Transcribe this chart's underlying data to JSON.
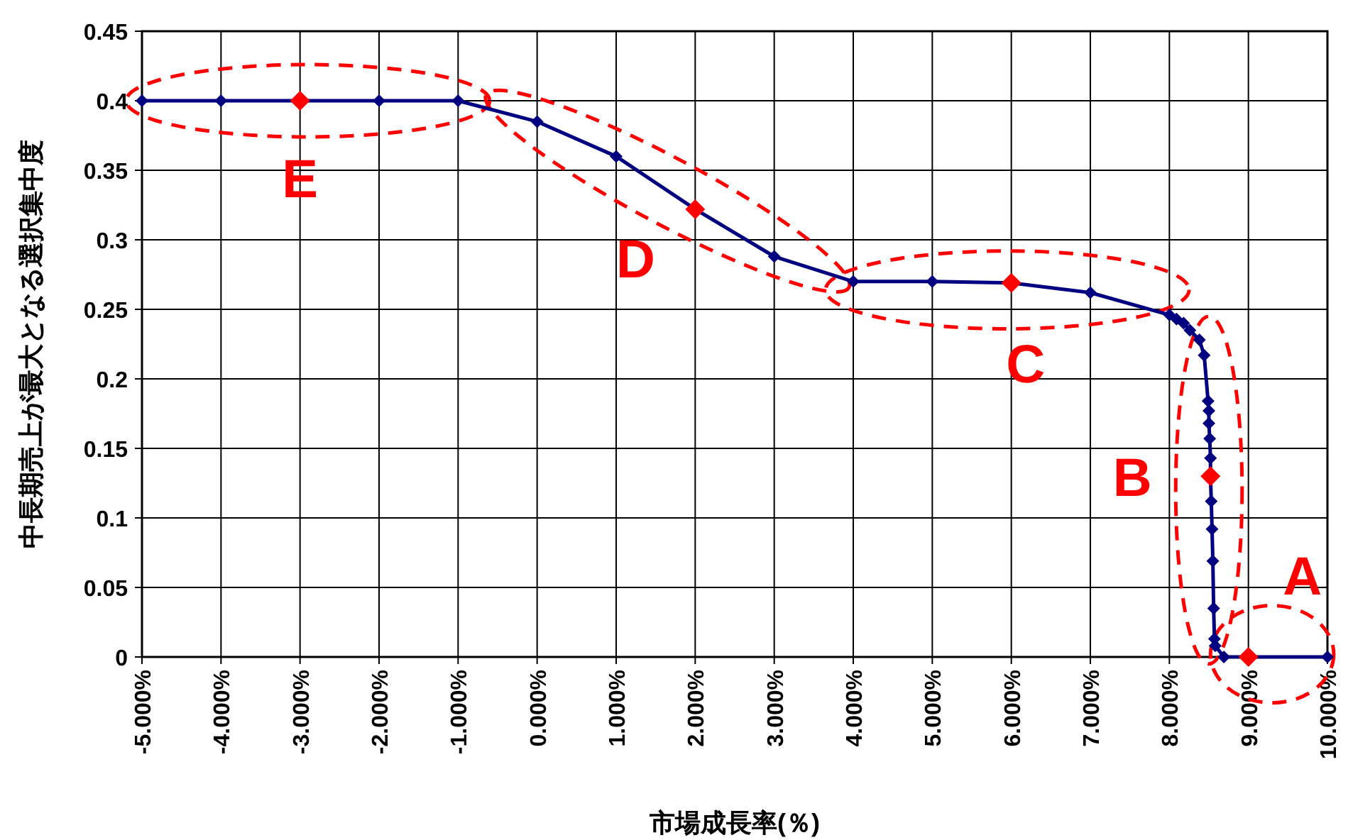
{
  "chart_data": {
    "type": "line",
    "xlabel": "市場成長率(％)",
    "ylabel": "中長期売上が最大となる選択集中度",
    "xlim": [
      -5,
      10
    ],
    "xticks": [
      {
        "value": -5,
        "label": "-5.000%"
      },
      {
        "value": -4,
        "label": "-4.000%"
      },
      {
        "value": -3,
        "label": "-3.000%"
      },
      {
        "value": -2,
        "label": "-2.000%"
      },
      {
        "value": -1,
        "label": "-1.000%"
      },
      {
        "value": 0,
        "label": "0.000%"
      },
      {
        "value": 1,
        "label": "1.000%"
      },
      {
        "value": 2,
        "label": "2.000%"
      },
      {
        "value": 3,
        "label": "3.000%"
      },
      {
        "value": 4,
        "label": "4.000%"
      },
      {
        "value": 5,
        "label": "5.000%"
      },
      {
        "value": 6,
        "label": "6.000%"
      },
      {
        "value": 7,
        "label": "7.000%"
      },
      {
        "value": 8,
        "label": "8.000%"
      },
      {
        "value": 9,
        "label": "9.000%"
      },
      {
        "value": 10,
        "label": "10.000%"
      }
    ],
    "ylim": [
      0,
      0.45
    ],
    "yticks": [
      0,
      0.05,
      0.1,
      0.15,
      0.2,
      0.25,
      0.3,
      0.35,
      0.4,
      0.45
    ],
    "grid": true,
    "series": [
      {
        "color": "#000080",
        "marker": "diamond",
        "x": [
          -5,
          -4,
          -3,
          -2,
          -1,
          0,
          1,
          2,
          3,
          4,
          5,
          6,
          7,
          8.0,
          8.09,
          8.18,
          8.26,
          8.38,
          8.44,
          8.49,
          8.5,
          8.5,
          8.51,
          8.52,
          8.52,
          8.53,
          8.54,
          8.55,
          8.56,
          8.57,
          8.58,
          8.69,
          9.0,
          10
        ],
        "values": [
          0.4,
          0.4,
          0.4,
          0.4,
          0.4,
          0.385,
          0.36,
          0.322,
          0.288,
          0.27,
          0.27,
          0.269,
          0.262,
          0.246,
          0.243,
          0.24,
          0.235,
          0.228,
          0.217,
          0.184,
          0.177,
          0.168,
          0.157,
          0.143,
          0.13,
          0.112,
          0.092,
          0.069,
          0.035,
          0.013,
          0.008,
          0,
          0,
          0
        ]
      },
      {
        "type": "scatter",
        "color": "#ff0000",
        "marker": "diamond",
        "x": [
          -3,
          2,
          6,
          8.52,
          9.0
        ],
        "values": [
          0.4,
          0.322,
          0.269,
          0.13,
          0
        ]
      }
    ],
    "annotations": [
      {
        "text": "E",
        "x": -3,
        "y": 0.4
      },
      {
        "text": "D",
        "x": 2,
        "y": 0.322
      },
      {
        "text": "C",
        "x": 6,
        "y": 0.269
      },
      {
        "text": "B",
        "x": 8.52,
        "y": 0.13
      },
      {
        "text": "A",
        "x": 9.0,
        "y": 0
      }
    ]
  }
}
